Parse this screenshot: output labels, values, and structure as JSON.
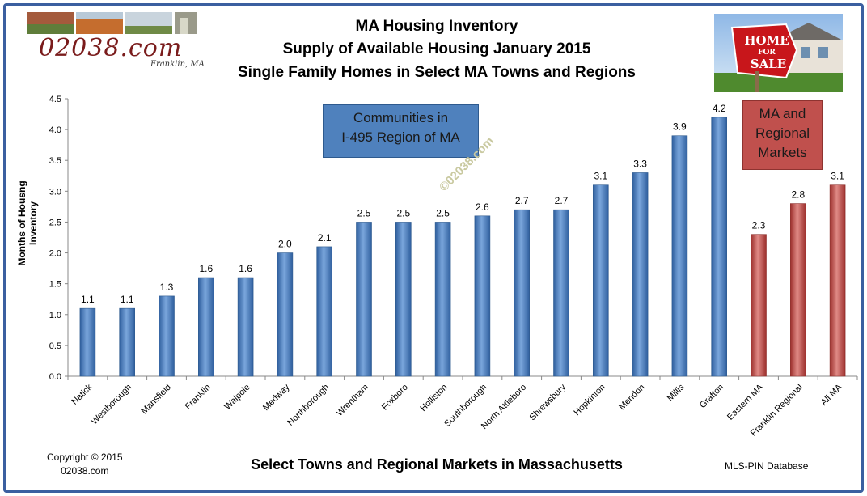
{
  "header": {
    "title_line1": "MA Housing Inventory",
    "title_line2": "Supply of Available Housing January 2015",
    "title_line3": "Single Family Homes in Select MA Towns and Regions"
  },
  "logo": {
    "text": "02038.com",
    "subtext": "Franklin, MA"
  },
  "sign": {
    "line1": "HOME",
    "line2": "FOR",
    "line3": "SALE"
  },
  "annotations": {
    "communities": [
      "Communities in",
      "I-495 Region of MA"
    ],
    "regional": [
      "MA and",
      "Regional",
      "Markets"
    ],
    "watermark": "©02038.com"
  },
  "footer": {
    "copyright_line1": "Copyright © 2015",
    "copyright_line2": "02038.com",
    "source": "MLS-PIN Database"
  },
  "colors": {
    "town_bar": "#4f81bd",
    "regional_bar": "#c0504d",
    "frame": "#3b5fa0"
  },
  "chart_data": {
    "type": "bar",
    "title": "MA Housing Inventory",
    "xlabel": "Select Towns and Regional Markets in Massachusetts",
    "ylabel": "Months of Housng Inventory",
    "ylim": [
      0,
      4.5
    ],
    "yticks": [
      "0.0",
      "0.5",
      "1.0",
      "1.5",
      "2.0",
      "2.5",
      "3.0",
      "3.5",
      "4.0",
      "4.5"
    ],
    "grid": false,
    "categories": [
      "Natick",
      "Westborough",
      "Mansfield",
      "Franklin",
      "Walpole",
      "Medway",
      "Northborough",
      "Wrentham",
      "Foxboro",
      "Holliston",
      "Southborough",
      "North Attleboro",
      "Shrewsbury",
      "Hopkinton",
      "Mendon",
      "Millis",
      "Grafton",
      "Eastern MA",
      "Franklin Regional",
      "All MA"
    ],
    "values": [
      1.1,
      1.1,
      1.3,
      1.6,
      1.6,
      2.0,
      2.1,
      2.5,
      2.5,
      2.5,
      2.6,
      2.7,
      2.7,
      3.1,
      3.3,
      3.9,
      4.2,
      2.3,
      2.8,
      3.1
    ],
    "value_labels": [
      "1.1",
      "1.1",
      "1.3",
      "1.6",
      "1.6",
      "2.0",
      "2.1",
      "2.5",
      "2.5",
      "2.5",
      "2.6",
      "2.7",
      "2.7",
      "3.1",
      "3.3",
      "3.9",
      "4.2",
      "2.3",
      "2.8",
      "3.1"
    ],
    "group": [
      "town",
      "town",
      "town",
      "town",
      "town",
      "town",
      "town",
      "town",
      "town",
      "town",
      "town",
      "town",
      "town",
      "town",
      "town",
      "town",
      "town",
      "regional",
      "regional",
      "regional"
    ]
  }
}
